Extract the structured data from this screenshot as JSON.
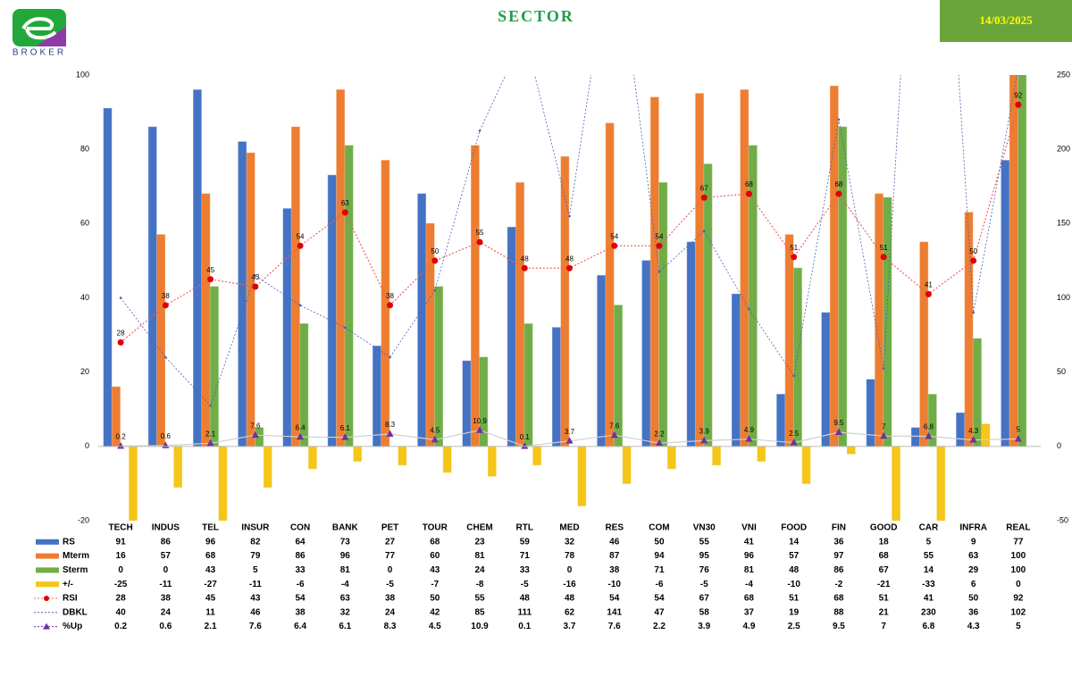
{
  "header": {
    "logo_text": "BROKER",
    "title": "SECTOR",
    "date": "14/03/2025"
  },
  "chart_data": {
    "type": "bar",
    "categories": [
      "TECH",
      "INDUS",
      "TEL",
      "INSUR",
      "CON",
      "BANK",
      "PET",
      "TOUR",
      "CHEM",
      "RTL",
      "MED",
      "RES",
      "COM",
      "VN30",
      "VNI",
      "FOOD",
      "FIN",
      "GOOD",
      "CAR",
      "INFRA",
      "REAL"
    ],
    "ylim": [
      -20,
      100
    ],
    "yticks": [
      -20,
      0,
      20,
      40,
      60,
      80,
      100
    ],
    "y2lim": [
      -50,
      250
    ],
    "y2ticks": [
      -50,
      0,
      50,
      100,
      150,
      200,
      250
    ],
    "grid": false,
    "series": [
      {
        "name": "RS",
        "type": "bar",
        "color": "#4472c4",
        "values": [
          91,
          86,
          96,
          82,
          64,
          73,
          27,
          68,
          23,
          59,
          32,
          46,
          50,
          55,
          41,
          14,
          36,
          18,
          5,
          9,
          77
        ]
      },
      {
        "name": "Mterm",
        "type": "bar",
        "color": "#ed7d31",
        "values": [
          16,
          57,
          68,
          79,
          86,
          96,
          77,
          60,
          81,
          71,
          78,
          87,
          94,
          95,
          96,
          57,
          97,
          68,
          55,
          63,
          100
        ]
      },
      {
        "name": "Sterm",
        "type": "bar",
        "color": "#70ad47",
        "values": [
          0,
          0,
          43,
          5,
          33,
          81,
          0,
          43,
          24,
          33,
          0,
          38,
          71,
          76,
          81,
          48,
          86,
          67,
          14,
          29,
          100
        ]
      },
      {
        "name": "+/-",
        "type": "bar",
        "color": "#f5c518",
        "values": [
          -25,
          -11,
          -27,
          -11,
          -6,
          -4,
          -5,
          -7,
          -8,
          -5,
          -16,
          -10,
          -6,
          -5,
          -4,
          -10,
          -2,
          -21,
          -33,
          6,
          0
        ]
      },
      {
        "name": "RSI",
        "type": "line",
        "color": "#e00000",
        "line_color": "#f06060",
        "marker": "circle",
        "labels": true,
        "values": [
          28,
          38,
          45,
          43,
          54,
          63,
          38,
          50,
          55,
          48,
          48,
          54,
          54,
          67,
          68,
          51,
          68,
          51,
          41,
          50,
          92
        ]
      },
      {
        "name": "DBKL",
        "type": "line",
        "color": "#4a5fb5",
        "line_color": "#4a5fb5",
        "marker": "dot",
        "labels": false,
        "values": [
          40,
          24,
          11,
          46,
          38,
          32,
          24,
          42,
          85,
          111,
          62,
          141,
          47,
          58,
          37,
          19,
          88,
          21,
          230,
          36,
          102
        ]
      },
      {
        "name": "%Up",
        "type": "line",
        "axis": "y2",
        "color": "#7030a0",
        "line_color": "#d0d0d0",
        "marker": "triangle",
        "labels": true,
        "values": [
          0.2,
          0.6,
          2.1,
          7.6,
          6.4,
          6.1,
          8.3,
          4.5,
          10.9,
          0.1,
          3.7,
          7.6,
          2.2,
          3.9,
          4.9,
          2.5,
          9.5,
          7,
          6.8,
          4.3,
          5
        ]
      }
    ]
  }
}
